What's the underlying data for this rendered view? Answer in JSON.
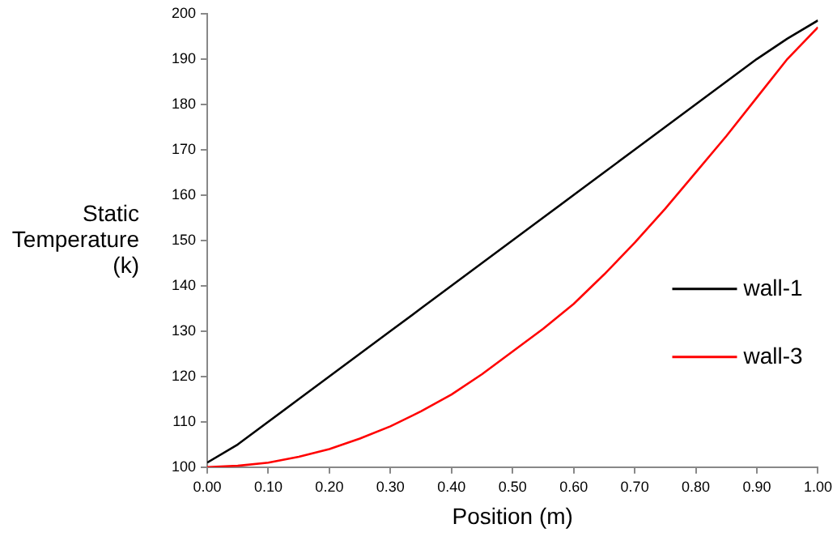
{
  "chart_data": {
    "type": "line",
    "xlabel": "Position (m)",
    "ylabel": "Static Temperature (k)",
    "xlim": [
      0,
      1
    ],
    "ylim": [
      100,
      200
    ],
    "xticks": [
      {
        "value": 0,
        "label": "0.00"
      },
      {
        "value": 0.1,
        "label": "0.10"
      },
      {
        "value": 0.2,
        "label": "0.20"
      },
      {
        "value": 0.3,
        "label": "0.30"
      },
      {
        "value": 0.4,
        "label": "0.40"
      },
      {
        "value": 0.5,
        "label": "0.50"
      },
      {
        "value": 0.6,
        "label": "0.60"
      },
      {
        "value": 0.7,
        "label": "0.70"
      },
      {
        "value": 0.8,
        "label": "0.80"
      },
      {
        "value": 0.9,
        "label": "0.90"
      },
      {
        "value": 1,
        "label": "1.00"
      }
    ],
    "yticks": [
      100,
      110,
      120,
      130,
      140,
      150,
      160,
      170,
      180,
      190,
      200
    ],
    "x": [
      0,
      0.05,
      0.1,
      0.15,
      0.2,
      0.25,
      0.3,
      0.35,
      0.4,
      0.45,
      0.5,
      0.55,
      0.6,
      0.65,
      0.7,
      0.75,
      0.8,
      0.85,
      0.9,
      0.95,
      1
    ],
    "series": [
      {
        "name": "wall-1",
        "color": "#000000",
        "values": [
          101,
          105,
          110,
          115,
          120,
          125,
          130,
          135,
          140,
          145,
          150,
          155,
          160,
          165,
          170,
          175,
          180,
          185,
          190,
          194.5,
          198.5
        ]
      },
      {
        "name": "wall-3",
        "color": "#ff0000",
        "values": [
          100,
          100.3,
          101,
          102.3,
          104,
          106.3,
          109,
          112.3,
          116,
          120.5,
          125.5,
          130.5,
          136,
          142.5,
          149.5,
          157,
          165,
          173,
          181.5,
          190,
          197
        ]
      }
    ],
    "grid": false,
    "legend": "right",
    "marker": "none",
    "line_style": "solid"
  }
}
